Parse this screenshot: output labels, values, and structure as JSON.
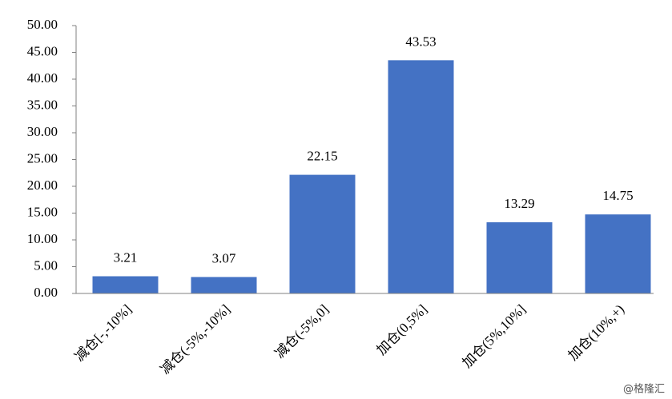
{
  "chart_data": {
    "type": "bar",
    "categories": [
      "减仓[-,-10%]",
      "减仓(-5%,-10%]",
      "减仓(-5%,0]",
      "加仓(0,5%]",
      "加仓(5%,10%]",
      "加仓(10%,+)"
    ],
    "values": [
      3.21,
      3.07,
      22.15,
      43.53,
      13.29,
      14.75
    ],
    "color": "#4472c4",
    "ylim": [
      0,
      50
    ],
    "yticks": [
      {
        "value": 0,
        "label": "0.00"
      },
      {
        "value": 5,
        "label": "5.00"
      },
      {
        "value": 10,
        "label": "10.00"
      },
      {
        "value": 15,
        "label": "15.00"
      },
      {
        "value": 20,
        "label": "20.00"
      },
      {
        "value": 25,
        "label": "25.00"
      },
      {
        "value": 30,
        "label": "30.00"
      },
      {
        "value": 35,
        "label": "35.00"
      },
      {
        "value": 40,
        "label": "40.00"
      },
      {
        "value": 45,
        "label": "45.00"
      },
      {
        "value": 50,
        "label": "50.00"
      }
    ],
    "grid": false,
    "watermark": "@格隆汇"
  }
}
